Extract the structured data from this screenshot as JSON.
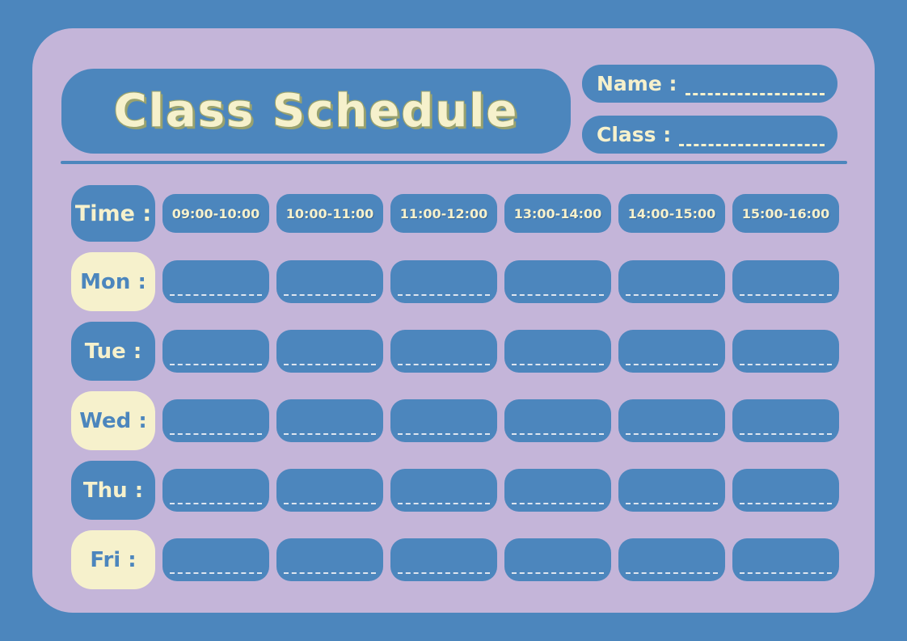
{
  "colors": {
    "background_blue": "#4c86bd",
    "card_lavender": "#c4b5d9",
    "box_blue": "#4c86bd",
    "cream": "#f6f1cc",
    "title_outline": "#99a26e",
    "cell_dash": "#dde5ef"
  },
  "header": {
    "title": "Class Schedule",
    "name_label": "Name :",
    "class_label": "Class :"
  },
  "schedule": {
    "time_label": "Time :",
    "time_slots": [
      "09:00-10:00",
      "10:00-11:00",
      "11:00-12:00",
      "13:00-14:00",
      "14:00-15:00",
      "15:00-16:00"
    ],
    "days": [
      {
        "label": "Mon :"
      },
      {
        "label": "Tue :"
      },
      {
        "label": "Wed :"
      },
      {
        "label": "Thu :"
      },
      {
        "label": "Fri :"
      }
    ]
  }
}
